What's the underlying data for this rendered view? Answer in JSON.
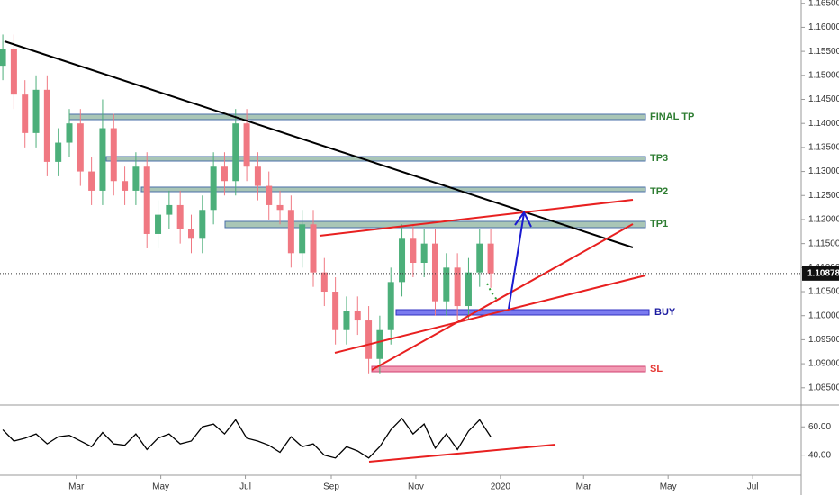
{
  "chart_data": [
    {
      "type": "candlestick",
      "x": [
        6,
        14,
        22,
        30,
        38,
        46,
        54,
        62,
        70,
        78,
        86,
        94,
        102,
        110,
        118,
        126,
        134,
        142,
        150,
        158,
        166,
        174,
        182,
        190,
        198,
        206,
        214,
        222,
        230,
        238,
        246,
        254,
        262,
        270,
        278,
        286,
        294,
        302,
        310,
        318,
        326,
        334,
        342,
        350,
        358
      ],
      "open": [
        1.152,
        1.1555,
        1.146,
        1.138,
        1.147,
        1.132,
        1.136,
        1.14,
        1.13,
        1.126,
        1.139,
        1.128,
        1.126,
        1.131,
        1.117,
        1.121,
        1.123,
        1.118,
        1.116,
        1.122,
        1.131,
        1.128,
        1.14,
        1.131,
        1.127,
        1.123,
        1.122,
        1.113,
        1.119,
        1.109,
        1.105,
        1.097,
        1.101,
        1.099,
        1.091,
        1.097,
        1.107,
        1.116,
        1.111,
        1.115,
        1.103,
        1.11,
        1.102,
        1.109,
        1.115
      ],
      "high": [
        1.1585,
        1.1585,
        1.149,
        1.15,
        1.15,
        1.139,
        1.143,
        1.143,
        1.133,
        1.145,
        1.142,
        1.131,
        1.134,
        1.134,
        1.124,
        1.126,
        1.126,
        1.121,
        1.125,
        1.134,
        1.134,
        1.143,
        1.143,
        1.134,
        1.13,
        1.126,
        1.125,
        1.122,
        1.122,
        1.112,
        1.108,
        1.104,
        1.104,
        1.102,
        1.1,
        1.11,
        1.119,
        1.119,
        1.118,
        1.118,
        1.113,
        1.113,
        1.112,
        1.118,
        1.118
      ],
      "low": [
        1.149,
        1.143,
        1.135,
        1.135,
        1.129,
        1.129,
        1.133,
        1.127,
        1.123,
        1.123,
        1.125,
        1.123,
        1.123,
        1.114,
        1.114,
        1.118,
        1.115,
        1.113,
        1.113,
        1.119,
        1.125,
        1.125,
        1.128,
        1.124,
        1.12,
        1.119,
        1.11,
        1.11,
        1.106,
        1.102,
        1.094,
        1.094,
        1.096,
        1.088,
        1.088,
        1.094,
        1.104,
        1.108,
        1.108,
        1.1,
        1.1,
        1.099,
        1.099,
        1.106,
        1.1058
      ],
      "close": [
        1.1555,
        1.146,
        1.138,
        1.147,
        1.132,
        1.136,
        1.14,
        1.13,
        1.126,
        1.139,
        1.128,
        1.126,
        1.131,
        1.117,
        1.121,
        1.123,
        1.118,
        1.116,
        1.122,
        1.131,
        1.128,
        1.14,
        1.131,
        1.127,
        1.123,
        1.122,
        1.113,
        1.119,
        1.109,
        1.105,
        1.097,
        1.101,
        1.099,
        1.091,
        1.097,
        1.107,
        1.116,
        1.111,
        1.115,
        1.103,
        1.11,
        1.102,
        1.109,
        1.115,
        1.1088
      ],
      "up_color": "#4caf7a",
      "down_color": "#f07882",
      "xlim": [
        4,
        582
      ],
      "ylim": [
        1.0814,
        1.1657
      ],
      "yticks": [
        {
          "value": 1.165,
          "label": "1.16500"
        },
        {
          "value": 1.16,
          "label": "1.16000"
        },
        {
          "value": 1.155,
          "label": "1.15500"
        },
        {
          "value": 1.15,
          "label": "1.15000"
        },
        {
          "value": 1.145,
          "label": "1.14500"
        },
        {
          "value": 1.14,
          "label": "1.14000"
        },
        {
          "value": 1.135,
          "label": "1.13500"
        },
        {
          "value": 1.13,
          "label": "1.13000"
        },
        {
          "value": 1.125,
          "label": "1.12500"
        },
        {
          "value": 1.12,
          "label": "1.12000"
        },
        {
          "value": 1.115,
          "label": "1.11500"
        },
        {
          "value": 1.11,
          "label": "1.11000"
        },
        {
          "value": 1.105,
          "label": "1.10500"
        },
        {
          "value": 1.1,
          "label": "1.10000"
        },
        {
          "value": 1.095,
          "label": "1.09500"
        },
        {
          "value": 1.09,
          "label": "1.09000"
        },
        {
          "value": 1.085,
          "label": "1.08500"
        }
      ],
      "last_price": {
        "value": 1.10878,
        "label": "1.10878"
      },
      "annotations": [
        "FINAL TP",
        "TP3",
        "TP2",
        "TP1",
        "BUY",
        "SL"
      ]
    },
    {
      "type": "line",
      "x": [
        6,
        14,
        22,
        30,
        38,
        46,
        54,
        62,
        70,
        78,
        86,
        94,
        102,
        110,
        118,
        126,
        134,
        142,
        150,
        158,
        166,
        174,
        182,
        190,
        198,
        206,
        214,
        222,
        230,
        238,
        246,
        254,
        262,
        270,
        278,
        286,
        294,
        302,
        310,
        318,
        326,
        334,
        342,
        350,
        358
      ],
      "values": [
        58,
        50,
        52,
        55,
        48,
        53,
        54,
        50,
        46,
        56,
        48,
        47,
        55,
        44,
        52,
        55,
        48,
        50,
        60,
        62,
        55,
        65,
        52,
        50,
        47,
        42,
        53,
        46,
        48,
        40,
        38,
        46,
        43,
        38,
        46,
        58,
        66,
        55,
        62,
        45,
        55,
        44,
        57,
        65,
        53
      ],
      "color": "#000000",
      "xlim": [
        4,
        582
      ],
      "ylim": [
        25.8,
        74.8
      ],
      "yticks": [
        {
          "value": 60,
          "label": "60.00"
        },
        {
          "value": 40,
          "label": "40.00"
        }
      ],
      "xticks": [
        {
          "value": 59,
          "label": "Mar"
        },
        {
          "value": 120,
          "label": "May"
        },
        {
          "value": 181,
          "label": "Jul"
        },
        {
          "value": 243,
          "label": "Sep"
        },
        {
          "value": 304,
          "label": "Nov"
        },
        {
          "value": 365,
          "label": "2020"
        },
        {
          "value": 425,
          "label": "Mar"
        },
        {
          "value": 486,
          "label": "May"
        },
        {
          "value": 547,
          "label": "Jul"
        }
      ]
    }
  ]
}
